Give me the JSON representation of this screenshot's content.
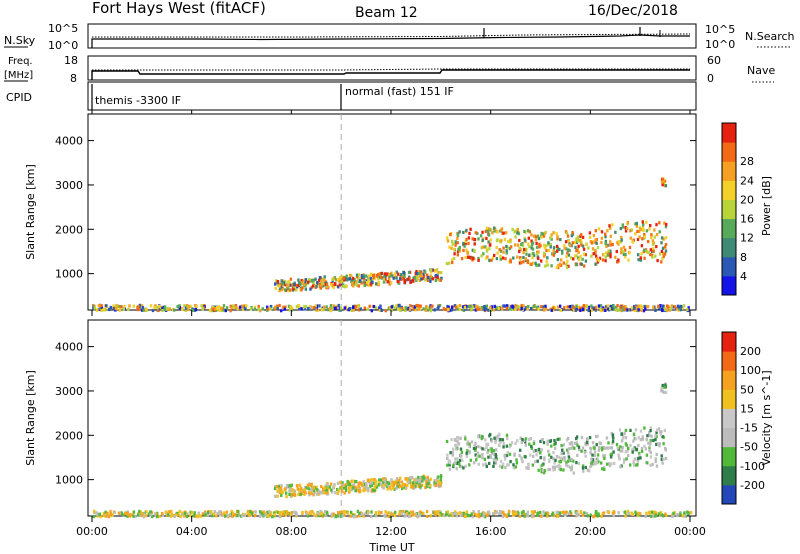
{
  "header": {
    "station": "Fort Hays West (fitACF)",
    "beam": "Beam 12",
    "date": "16/Dec/2018"
  },
  "noise_panel": {
    "left_label": "N.Sky",
    "right_label": "N.Search",
    "left_ticks": [
      "10^5",
      "10^0"
    ],
    "right_ticks": [
      "10^5",
      "10^0"
    ]
  },
  "freq_panel": {
    "left_label_1": "Freq.",
    "left_label_2": "[MHz]",
    "right_label": "Nave",
    "left_ticks": [
      "18",
      "8"
    ],
    "right_ticks": [
      "60",
      "0"
    ]
  },
  "cpid_panel": {
    "label": "CPID",
    "modes": [
      {
        "name": "themis -3300 IF",
        "start_hour": 0
      },
      {
        "name": "normal (fast) 151 IF",
        "start_hour": 10
      }
    ]
  },
  "x_axis": {
    "label": "Time UT",
    "ticks": [
      "00:00",
      "04:00",
      "08:00",
      "12:00",
      "16:00",
      "20:00",
      "00:00"
    ],
    "range_hours": [
      0,
      24
    ],
    "marker_hour": 10
  },
  "chart_data": [
    {
      "type": "heatmap",
      "ylabel": "Slant Range [km]",
      "yticks": [
        "1000",
        "2000",
        "3000",
        "4000"
      ],
      "ylim": [
        180,
        4600
      ],
      "colorbar_label": "Power [dB]",
      "colorbar_ticks": [
        "4",
        "8",
        "12",
        "16",
        "20",
        "24",
        "28"
      ],
      "colorbar_colors": [
        "#1414e8",
        "#2a58b4",
        "#3f8a74",
        "#58a95a",
        "#b8d43a",
        "#f3d12a",
        "#f5a021",
        "#f36a16",
        "#e5210f"
      ],
      "regions": [
        {
          "name": "ground-scatter-band",
          "t": [
            0,
            24
          ],
          "range": [
            200,
            320
          ]
        },
        {
          "name": "echo-band-1",
          "t": [
            7.3,
            14
          ],
          "range": [
            600,
            1100
          ]
        },
        {
          "name": "echo-band-2",
          "t": [
            14.2,
            23
          ],
          "range": [
            1100,
            2300
          ]
        },
        {
          "name": "patch",
          "t": [
            22.8,
            23.0
          ],
          "range": [
            3000,
            3200
          ]
        }
      ]
    },
    {
      "type": "heatmap",
      "ylabel": "Slant Range [km]",
      "yticks": [
        "1000",
        "2000",
        "3000",
        "4000"
      ],
      "ylim": [
        180,
        4600
      ],
      "colorbar_label": "Velocity [m s^-1]",
      "colorbar_ticks": [
        "200",
        "100",
        "50",
        "15",
        "-15",
        "-50",
        "-100",
        "-200"
      ],
      "colorbar_colors": [
        "#2346b8",
        "#2f7d4a",
        "#52b83a",
        "#bcbcbc",
        "#c8c8c8",
        "#f0c020",
        "#f5a221",
        "#f36a16",
        "#e5210f"
      ],
      "regions": [
        {
          "name": "ground-scatter-band",
          "t": [
            0,
            24
          ],
          "range": [
            200,
            320
          ]
        },
        {
          "name": "echo-band-1",
          "t": [
            7.3,
            14
          ],
          "range": [
            600,
            1100
          ]
        },
        {
          "name": "echo-band-2",
          "t": [
            14.2,
            23
          ],
          "range": [
            1100,
            2300
          ]
        },
        {
          "name": "patch",
          "t": [
            22.8,
            23.0
          ],
          "range": [
            3000,
            3200
          ]
        }
      ]
    }
  ]
}
